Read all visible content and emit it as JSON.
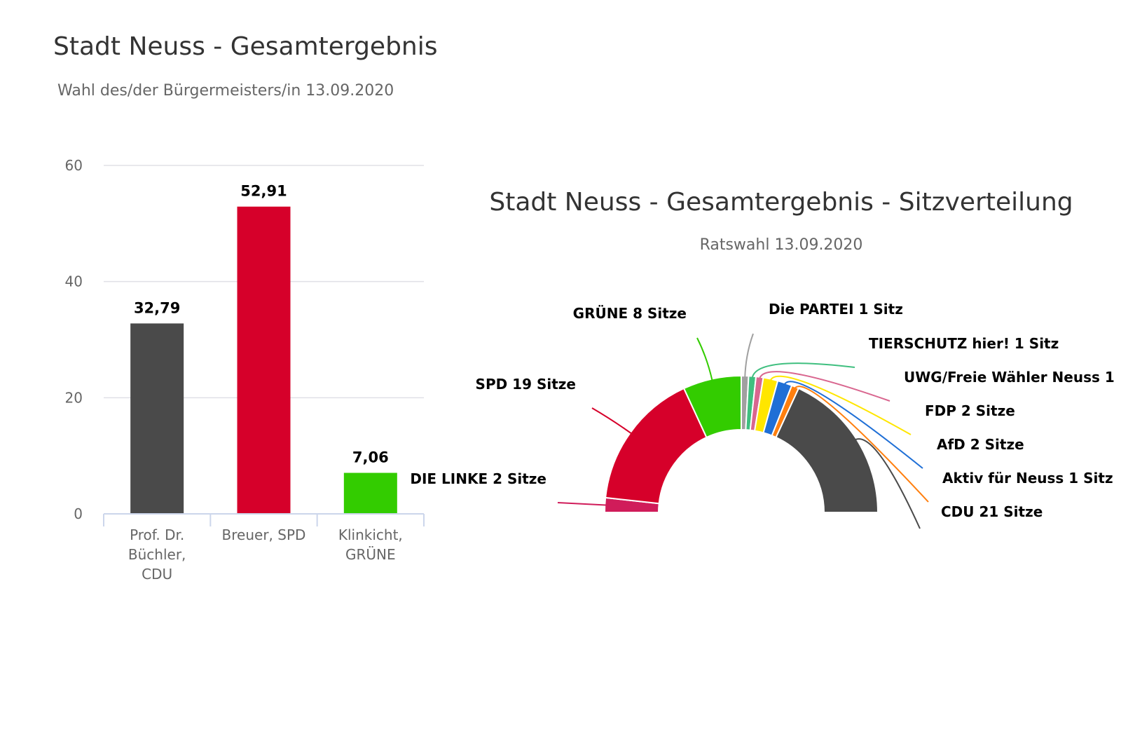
{
  "chart_data": [
    {
      "type": "bar",
      "title": "Stadt Neuss - Gesamtergebnis",
      "subtitle": "Wahl des/der Bürgermeisters/in 13.09.2020",
      "categories": [
        [
          "Prof. Dr.",
          "Büchler,",
          "CDU"
        ],
        [
          "Breuer, SPD"
        ],
        [
          "Klinkicht,",
          "GRÜNE"
        ]
      ],
      "values": [
        32.79,
        52.91,
        7.06
      ],
      "value_labels": [
        "32,79",
        "52,91",
        "7,06"
      ],
      "colors": [
        "#4a4a4a",
        "#d6002a",
        "#33cc00"
      ],
      "yticks": [
        0,
        20,
        40,
        60
      ],
      "ylim": [
        0,
        60
      ],
      "grid": true
    },
    {
      "type": "pie",
      "variant": "semicircle-donut",
      "title": "Stadt Neuss - Gesamtergebnis - Sitzverteilung",
      "subtitle": "Ratswahl 13.09.2020",
      "slices": [
        {
          "party": "DIE LINKE",
          "seats": 2,
          "label": "DIE LINKE 2 Sitze",
          "color": "#d01c5a"
        },
        {
          "party": "SPD",
          "seats": 19,
          "label": "SPD 19 Sitze",
          "color": "#d6002a"
        },
        {
          "party": "GRÜNE",
          "seats": 8,
          "label": "GRÜNE 8 Sitze",
          "color": "#33cc00"
        },
        {
          "party": "Die PARTEI",
          "seats": 1,
          "label": "Die PARTEI 1 Sitz",
          "color": "#a0a0a0"
        },
        {
          "party": "TIERSCHUTZ hier!",
          "seats": 1,
          "label": "TIERSCHUTZ hier! 1 Sitz",
          "color": "#3fbf7f"
        },
        {
          "party": "UWG/Freie Wähler Neuss",
          "seats": 1,
          "label": "UWG/Freie Wähler Neuss 1",
          "color": "#d9668f"
        },
        {
          "party": "FDP",
          "seats": 2,
          "label": "FDP 2 Sitze",
          "color": "#ffe600"
        },
        {
          "party": "AfD",
          "seats": 2,
          "label": "AfD 2 Sitze",
          "color": "#1f6fd6"
        },
        {
          "party": "Aktiv für Neuss",
          "seats": 1,
          "label": "Aktiv für Neuss 1 Sitz",
          "color": "#ff7f0e"
        },
        {
          "party": "CDU",
          "seats": 21,
          "label": "CDU 21 Sitze",
          "color": "#4a4a4a"
        }
      ]
    }
  ]
}
